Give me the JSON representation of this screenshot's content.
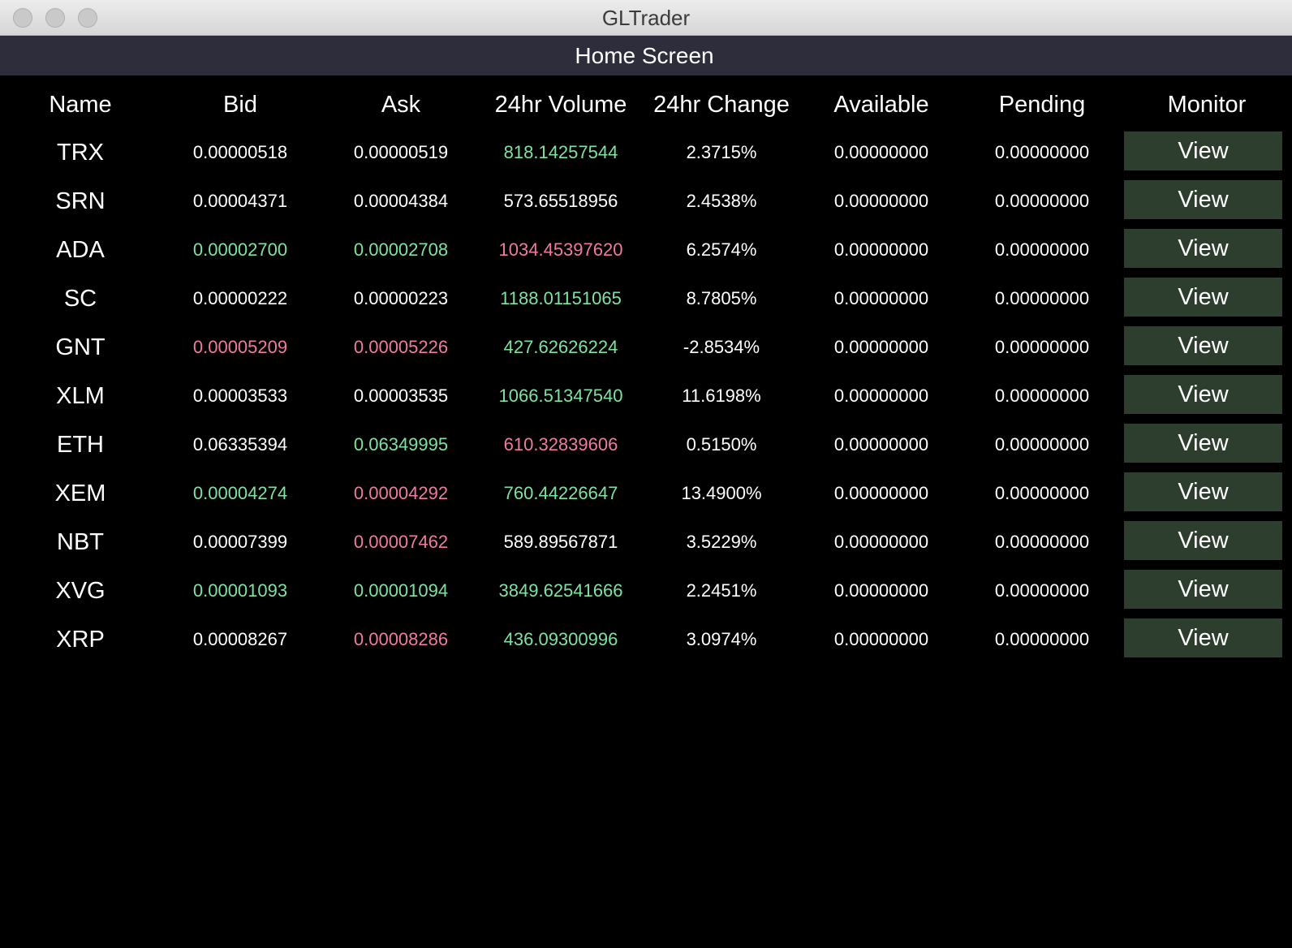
{
  "window": {
    "title": "GLTrader"
  },
  "screen": {
    "title": "Home Screen"
  },
  "table": {
    "columns": [
      "Name",
      "Bid",
      "Ask",
      "24hr Volume",
      "24hr Change",
      "Available",
      "Pending",
      "Monitor"
    ],
    "rows": [
      {
        "name": "TRX",
        "bid": "0.00000518",
        "bid_color": "white",
        "ask": "0.00000519",
        "ask_color": "white",
        "volume": "818.14257544",
        "volume_color": "green",
        "change": "2.3715%",
        "available": "0.00000000",
        "pending": "0.00000000",
        "action": "View"
      },
      {
        "name": "SRN",
        "bid": "0.00004371",
        "bid_color": "white",
        "ask": "0.00004384",
        "ask_color": "white",
        "volume": "573.65518956",
        "volume_color": "white",
        "change": "2.4538%",
        "available": "0.00000000",
        "pending": "0.00000000",
        "action": "View"
      },
      {
        "name": "ADA",
        "bid": "0.00002700",
        "bid_color": "green",
        "ask": "0.00002708",
        "ask_color": "green",
        "volume": "1034.45397620",
        "volume_color": "pink",
        "change": "6.2574%",
        "available": "0.00000000",
        "pending": "0.00000000",
        "action": "View"
      },
      {
        "name": "SC",
        "bid": "0.00000222",
        "bid_color": "white",
        "ask": "0.00000223",
        "ask_color": "white",
        "volume": "1188.01151065",
        "volume_color": "green",
        "change": "8.7805%",
        "available": "0.00000000",
        "pending": "0.00000000",
        "action": "View"
      },
      {
        "name": "GNT",
        "bid": "0.00005209",
        "bid_color": "pink",
        "ask": "0.00005226",
        "ask_color": "pink",
        "volume": "427.62626224",
        "volume_color": "green",
        "change": "-2.8534%",
        "available": "0.00000000",
        "pending": "0.00000000",
        "action": "View"
      },
      {
        "name": "XLM",
        "bid": "0.00003533",
        "bid_color": "white",
        "ask": "0.00003535",
        "ask_color": "white",
        "volume": "1066.51347540",
        "volume_color": "green",
        "change": "11.6198%",
        "available": "0.00000000",
        "pending": "0.00000000",
        "action": "View"
      },
      {
        "name": "ETH",
        "bid": "0.06335394",
        "bid_color": "white",
        "ask": "0.06349995",
        "ask_color": "green",
        "volume": "610.32839606",
        "volume_color": "pink",
        "change": "0.5150%",
        "available": "0.00000000",
        "pending": "0.00000000",
        "action": "View"
      },
      {
        "name": "XEM",
        "bid": "0.00004274",
        "bid_color": "green",
        "ask": "0.00004292",
        "ask_color": "pink",
        "volume": "760.44226647",
        "volume_color": "green",
        "change": "13.4900%",
        "available": "0.00000000",
        "pending": "0.00000000",
        "action": "View"
      },
      {
        "name": "NBT",
        "bid": "0.00007399",
        "bid_color": "white",
        "ask": "0.00007462",
        "ask_color": "pink",
        "volume": "589.89567871",
        "volume_color": "white",
        "change": "3.5229%",
        "available": "0.00000000",
        "pending": "0.00000000",
        "action": "View"
      },
      {
        "name": "XVG",
        "bid": "0.00001093",
        "bid_color": "green",
        "ask": "0.00001094",
        "ask_color": "green",
        "volume": "3849.62541666",
        "volume_color": "green",
        "change": "2.2451%",
        "available": "0.00000000",
        "pending": "0.00000000",
        "action": "View"
      },
      {
        "name": "XRP",
        "bid": "0.00008267",
        "bid_color": "white",
        "ask": "0.00008286",
        "ask_color": "pink",
        "volume": "436.09300996",
        "volume_color": "green",
        "change": "3.0974%",
        "available": "0.00000000",
        "pending": "0.00000000",
        "action": "View"
      }
    ]
  },
  "colors": {
    "background": "#000000",
    "header_bar": "#2d2d3c",
    "button": "#2d3e2f",
    "green": "#7de3a3",
    "pink": "#f07aa3",
    "white": "#ffffff"
  }
}
